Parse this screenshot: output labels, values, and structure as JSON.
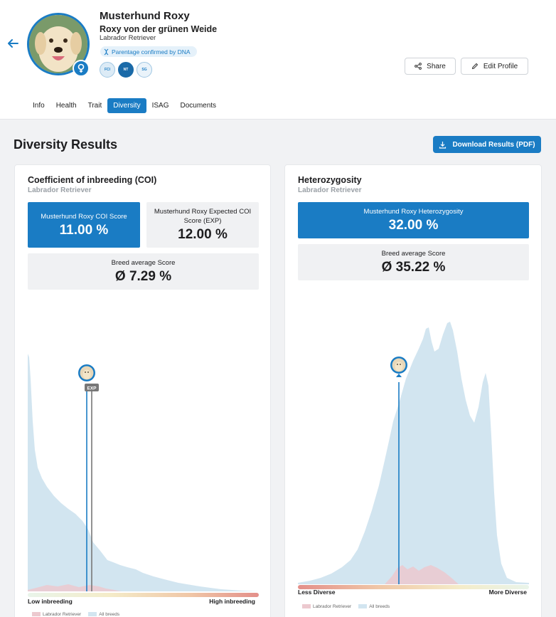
{
  "profile": {
    "name": "Musterhund Roxy",
    "kennel": "Roxy von der grünen Weide",
    "breed": "Labrador Retriever",
    "dna_badge": "Parentage confirmed by DNA",
    "certificates": [
      "FCI",
      "NT",
      "SG"
    ]
  },
  "actions": {
    "share": "Share",
    "edit": "Edit Profile"
  },
  "tabs": [
    {
      "label": "Info",
      "active": false
    },
    {
      "label": "Health",
      "active": false
    },
    {
      "label": "Trait",
      "active": false
    },
    {
      "label": "Diversity",
      "active": true
    },
    {
      "label": "ISAG",
      "active": false
    },
    {
      "label": "Documents",
      "active": false
    }
  ],
  "section": {
    "title": "Diversity Results",
    "download": "Download Results (PDF)"
  },
  "coi": {
    "title": "Coefficient of inbreeding (COI)",
    "breed": "Labrador Retriever",
    "score_label": "Musterhund Roxy COI Score",
    "score": "11.00 %",
    "exp_label": "Musterhund Roxy Expected COI Score (EXP)",
    "exp": "12.00 %",
    "avg_label": "Breed average Score",
    "avg": "Ø 7.29 %",
    "marker_tag": "EXP",
    "low": "Low inbreeding",
    "high": "High inbreeding",
    "legend": [
      "Labrador Retriever",
      "All breeds"
    ]
  },
  "het": {
    "title": "Heterozygosity",
    "breed": "Labrador Retriever",
    "score_label": "Musterhund Roxy Heterozygosity",
    "score": "32.00 %",
    "avg_label": "Breed average Score",
    "avg": "Ø 35.22 %",
    "low": "Less Diverse",
    "high": "More Diverse",
    "legend": [
      "Labrador Retriever",
      "All breeds"
    ]
  },
  "colors": {
    "accent": "#1a7cc4",
    "all_breeds": "#d2e5f0",
    "breed": "#ecc9cf"
  }
}
